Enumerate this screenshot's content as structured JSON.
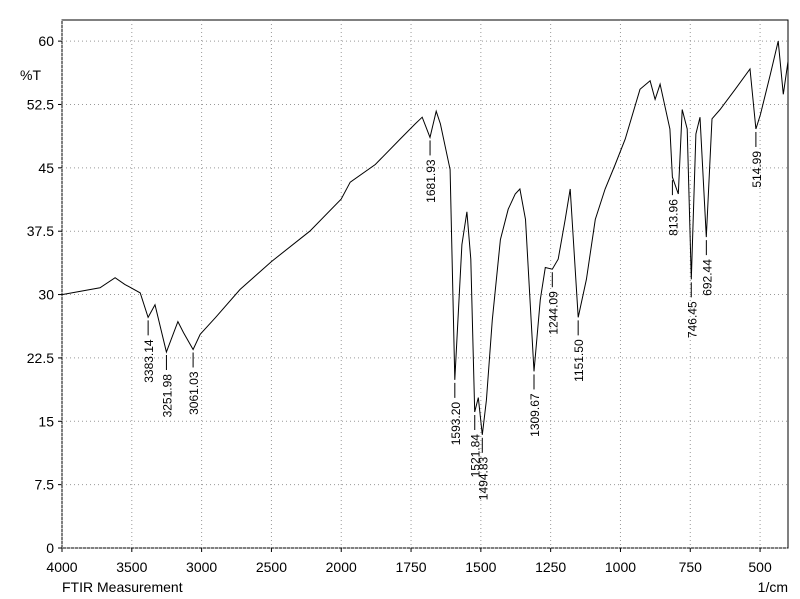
{
  "chart_data": {
    "type": "line",
    "title": "FTIR Measurement",
    "x_label": "1/cm",
    "y_label": "%T",
    "x": [
      4000,
      3728,
      3620,
      3550,
      3440,
      3383.14,
      3334,
      3251.98,
      3170,
      3130,
      3061.03,
      3010,
      2900,
      2725,
      2500,
      2225,
      2000,
      1968,
      1878,
      1789,
      1735,
      1710,
      1681.93,
      1660,
      1645,
      1610,
      1593.2,
      1568,
      1550,
      1536,
      1521.84,
      1509,
      1494.83,
      1480,
      1459,
      1430,
      1402,
      1377,
      1360,
      1340,
      1309.67,
      1287,
      1269,
      1244.09,
      1223,
      1198,
      1180,
      1151.5,
      1122,
      1090,
      1055,
      1019,
      983,
      930,
      894,
      876,
      858,
      823,
      813.96,
      793,
      779,
      761,
      746.45,
      730,
      715,
      692.44,
      672,
      643,
      589,
      536,
      514.99,
      499,
      463,
      435,
      417,
      400
    ],
    "values": [
      30.0,
      30.8,
      32.0,
      31.2,
      30.2,
      27.3,
      28.8,
      23.2,
      26.8,
      25.5,
      23.5,
      25.3,
      27.3,
      30.6,
      33.9,
      37.5,
      41.3,
      43.3,
      45.4,
      48.4,
      50.2,
      51.0,
      48.6,
      51.7,
      50.2,
      44.8,
      19.9,
      35.9,
      39.8,
      34.2,
      16.1,
      17.8,
      13.4,
      17.5,
      27.0,
      36.5,
      40.1,
      41.9,
      42.5,
      38.9,
      20.9,
      29.4,
      33.2,
      33.0,
      34.2,
      38.9,
      42.5,
      27.3,
      31.8,
      38.9,
      42.5,
      45.4,
      48.4,
      54.3,
      55.3,
      53.1,
      54.9,
      49.6,
      43.9,
      41.9,
      51.9,
      49.6,
      31.8,
      49.0,
      51.0,
      36.8,
      50.8,
      51.9,
      54.3,
      56.7,
      49.6,
      51.3,
      56.1,
      60.0,
      53.7,
      57.6
    ],
    "color": "#000000",
    "xlim": [
      4000,
      400
    ],
    "xticks": [
      4000,
      3500,
      3000,
      2500,
      2000,
      1750,
      1500,
      1250,
      1000,
      750,
      500
    ],
    "ylim": [
      0,
      62.5
    ],
    "yticks": [
      0,
      7.5,
      15,
      22.5,
      30,
      37.5,
      45,
      52.5,
      60
    ],
    "grid": true,
    "peaks": [
      {
        "label": "3383.14",
        "x": 3383.14,
        "y": 27.3
      },
      {
        "label": "3251.98",
        "x": 3251.98,
        "y": 23.2
      },
      {
        "label": "3061.03",
        "x": 3061.03,
        "y": 23.5
      },
      {
        "label": "1681.93",
        "x": 1681.93,
        "y": 48.6
      },
      {
        "label": "1593.20",
        "x": 1593.2,
        "y": 19.9
      },
      {
        "label": "1521.84",
        "x": 1521.84,
        "y": 16.1
      },
      {
        "label": "1494.83",
        "x": 1494.83,
        "y": 13.4
      },
      {
        "label": "1309.67",
        "x": 1309.67,
        "y": 20.9
      },
      {
        "label": "1244.09",
        "x": 1244.09,
        "y": 33.0
      },
      {
        "label": "1151.50",
        "x": 1151.5,
        "y": 27.3
      },
      {
        "label": "813.96",
        "x": 813.96,
        "y": 43.9
      },
      {
        "label": "746.45",
        "x": 746.45,
        "y": 31.8
      },
      {
        "label": "692.44",
        "x": 692.44,
        "y": 36.8
      },
      {
        "label": "514.99",
        "x": 514.99,
        "y": 49.6
      }
    ]
  }
}
